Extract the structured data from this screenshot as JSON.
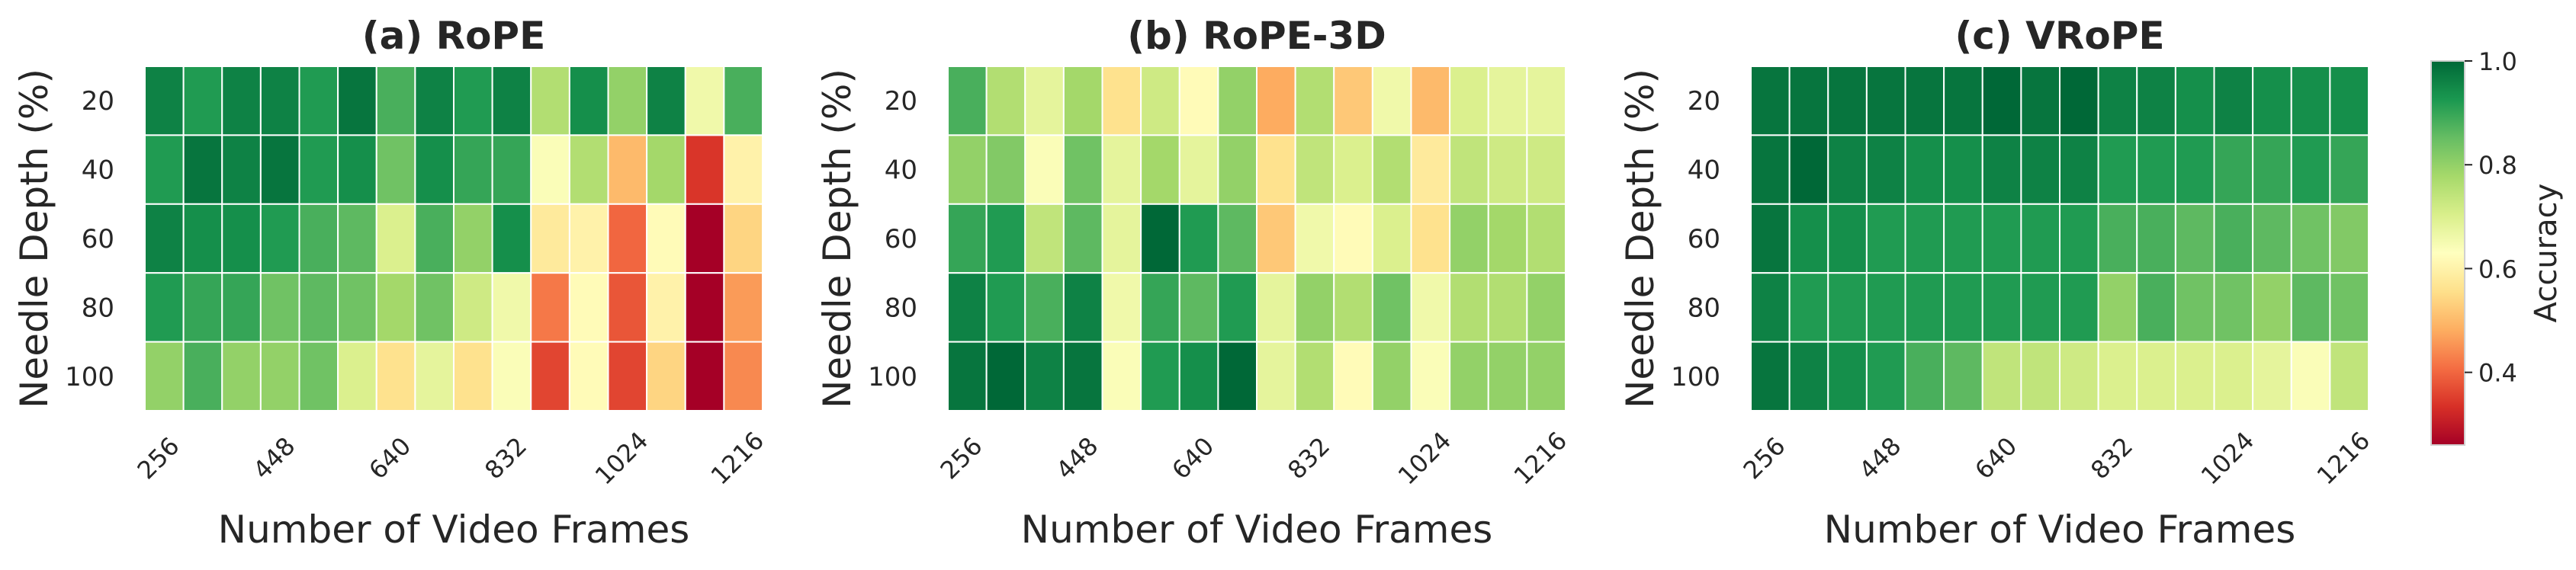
{
  "chart_data": [
    {
      "type": "heatmap",
      "title": "(a) RoPE",
      "xlabel": "Number of Video Frames",
      "ylabel": "Needle Depth (%)",
      "xtick_labels": [
        "256",
        "448",
        "640",
        "832",
        "1024",
        "1216"
      ],
      "ytick_labels": [
        "20",
        "40",
        "60",
        "80",
        "100"
      ],
      "x": [
        256,
        320,
        384,
        448,
        512,
        576,
        640,
        704,
        768,
        832,
        896,
        960,
        1024,
        1088,
        1152,
        1216
      ],
      "y": [
        20,
        40,
        60,
        80,
        100
      ],
      "values": [
        [
          0.96,
          0.92,
          0.96,
          0.96,
          0.92,
          0.98,
          0.88,
          0.96,
          0.92,
          0.96,
          0.76,
          0.94,
          0.8,
          0.96,
          0.66,
          0.88
        ],
        [
          0.92,
          0.98,
          0.96,
          0.98,
          0.92,
          0.94,
          0.84,
          0.94,
          0.9,
          0.9,
          0.64,
          0.76,
          0.5,
          0.78,
          0.34,
          0.6
        ],
        [
          0.96,
          0.94,
          0.94,
          0.92,
          0.88,
          0.86,
          0.7,
          0.88,
          0.8,
          0.94,
          0.58,
          0.6,
          0.4,
          0.62,
          0.26,
          0.54
        ],
        [
          0.92,
          0.9,
          0.9,
          0.84,
          0.86,
          0.84,
          0.78,
          0.84,
          0.72,
          0.66,
          0.42,
          0.62,
          0.38,
          0.6,
          0.26,
          0.46
        ],
        [
          0.8,
          0.88,
          0.8,
          0.8,
          0.84,
          0.7,
          0.56,
          0.68,
          0.56,
          0.64,
          0.36,
          0.62,
          0.36,
          0.54,
          0.26,
          0.44
        ]
      ]
    },
    {
      "type": "heatmap",
      "title": "(b) RoPE-3D",
      "xlabel": "Number of Video Frames",
      "ylabel": "Needle Depth (%)",
      "xtick_labels": [
        "256",
        "448",
        "640",
        "832",
        "1024",
        "1216"
      ],
      "ytick_labels": [
        "20",
        "40",
        "60",
        "80",
        "100"
      ],
      "x": [
        256,
        320,
        384,
        448,
        512,
        576,
        640,
        704,
        768,
        832,
        896,
        960,
        1024,
        1088,
        1152,
        1216
      ],
      "y": [
        20,
        40,
        60,
        80,
        100
      ],
      "values": [
        [
          0.88,
          0.76,
          0.68,
          0.78,
          0.56,
          0.72,
          0.62,
          0.8,
          0.48,
          0.76,
          0.52,
          0.66,
          0.5,
          0.7,
          0.68,
          0.68
        ],
        [
          0.8,
          0.82,
          0.64,
          0.84,
          0.68,
          0.78,
          0.68,
          0.8,
          0.56,
          0.74,
          0.7,
          0.76,
          0.58,
          0.74,
          0.72,
          0.72
        ],
        [
          0.9,
          0.92,
          0.74,
          0.86,
          0.68,
          1.0,
          0.92,
          0.86,
          0.52,
          0.66,
          0.62,
          0.7,
          0.56,
          0.8,
          0.78,
          0.76
        ],
        [
          0.96,
          0.92,
          0.88,
          0.96,
          0.66,
          0.9,
          0.86,
          0.92,
          0.68,
          0.8,
          0.76,
          0.84,
          0.66,
          0.76,
          0.76,
          0.8
        ],
        [
          0.98,
          1.0,
          0.96,
          0.98,
          0.64,
          0.92,
          0.94,
          1.0,
          0.68,
          0.76,
          0.62,
          0.8,
          0.64,
          0.8,
          0.8,
          0.8
        ]
      ]
    },
    {
      "type": "heatmap",
      "title": "(c) VRoPE",
      "xlabel": "Number of Video Frames",
      "ylabel": "Needle Depth (%)",
      "xtick_labels": [
        "256",
        "448",
        "640",
        "832",
        "1024",
        "1216"
      ],
      "ytick_labels": [
        "20",
        "40",
        "60",
        "80",
        "100"
      ],
      "x": [
        256,
        320,
        384,
        448,
        512,
        576,
        640,
        704,
        768,
        832,
        896,
        960,
        1024,
        1088,
        1152,
        1216
      ],
      "y": [
        20,
        40,
        60,
        80,
        100
      ],
      "values": [
        [
          0.98,
          0.98,
          0.98,
          0.98,
          0.98,
          0.98,
          1.0,
          0.98,
          1.0,
          0.96,
          0.96,
          0.94,
          0.96,
          0.94,
          0.94,
          0.94
        ],
        [
          0.98,
          1.0,
          0.96,
          0.96,
          0.94,
          0.94,
          0.96,
          0.96,
          0.96,
          0.92,
          0.92,
          0.92,
          0.9,
          0.9,
          0.92,
          0.9
        ],
        [
          0.98,
          0.94,
          0.94,
          0.92,
          0.92,
          0.92,
          0.92,
          0.92,
          0.92,
          0.88,
          0.88,
          0.86,
          0.88,
          0.86,
          0.84,
          0.82
        ],
        [
          0.96,
          0.92,
          0.92,
          0.92,
          0.92,
          0.92,
          0.92,
          0.92,
          0.92,
          0.8,
          0.88,
          0.84,
          0.84,
          0.8,
          0.86,
          0.84
        ],
        [
          0.98,
          0.96,
          0.94,
          0.92,
          0.88,
          0.86,
          0.74,
          0.74,
          0.72,
          0.7,
          0.7,
          0.7,
          0.7,
          0.68,
          0.64,
          0.74
        ]
      ]
    }
  ],
  "colorbar": {
    "label": "Accuracy",
    "colormap": "RdYlGn",
    "vmin": 0.26,
    "vmax": 1.0,
    "ticks": [
      0.4,
      0.6,
      0.8,
      1.0
    ],
    "tick_labels": [
      "0.4",
      "0.6",
      "0.8",
      "1.0"
    ]
  },
  "colors": {
    "text": "#262626",
    "cell_border": "#ffffff"
  }
}
